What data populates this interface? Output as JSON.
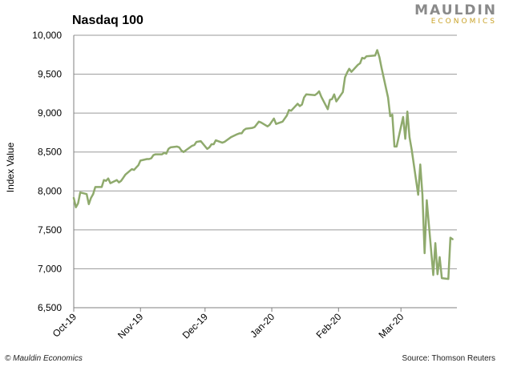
{
  "logo": {
    "name": "MAULDIN",
    "tagline": "ECONOMICS"
  },
  "footer": {
    "copyright": "© Mauldin Economics",
    "source": "Source: Thomson Reuters"
  },
  "colors": {
    "line": "#8faa6d",
    "grid": "#9a9a9a",
    "axis": "#7f7f7f"
  },
  "chart_data": {
    "type": "line",
    "title": "Nasdaq 100",
    "xlabel": "",
    "ylabel": "Index Value",
    "ylim": [
      6500,
      10000
    ],
    "yticks": [
      6500,
      7000,
      7500,
      8000,
      8500,
      9000,
      9500,
      10000
    ],
    "ytick_labels": [
      "6,500",
      "7,000",
      "7,500",
      "8,000",
      "8,500",
      "9,000",
      "9,500",
      "10,000"
    ],
    "xlim": [
      "2019-10-01",
      "2020-03-27"
    ],
    "xticks": [
      "2019-10-01",
      "2019-11-01",
      "2019-12-01",
      "2020-01-01",
      "2020-02-01",
      "2020-03-01"
    ],
    "xtick_labels": [
      "Oct-19",
      "Nov-19",
      "Dec-19",
      "Jan-20",
      "Feb-20",
      "Mar-20"
    ],
    "grid": true,
    "series": [
      {
        "x": [
          "2019-10-01",
          "2019-10-02",
          "2019-10-03",
          "2019-10-04",
          "2019-10-07",
          "2019-10-08",
          "2019-10-09",
          "2019-10-10",
          "2019-10-11",
          "2019-10-14",
          "2019-10-15",
          "2019-10-16",
          "2019-10-17",
          "2019-10-18",
          "2019-10-21",
          "2019-10-22",
          "2019-10-23",
          "2019-10-24",
          "2019-10-25",
          "2019-10-28",
          "2019-10-29",
          "2019-10-30",
          "2019-10-31",
          "2019-11-01",
          "2019-11-04",
          "2019-11-05",
          "2019-11-06",
          "2019-11-07",
          "2019-11-08",
          "2019-11-11",
          "2019-11-12",
          "2019-11-13",
          "2019-11-14",
          "2019-11-15",
          "2019-11-18",
          "2019-11-19",
          "2019-11-20",
          "2019-11-21",
          "2019-11-22",
          "2019-11-25",
          "2019-11-26",
          "2019-11-27",
          "2019-11-29",
          "2019-12-02",
          "2019-12-03",
          "2019-12-04",
          "2019-12-05",
          "2019-12-06",
          "2019-12-09",
          "2019-12-10",
          "2019-12-11",
          "2019-12-12",
          "2019-12-13",
          "2019-12-16",
          "2019-12-17",
          "2019-12-18",
          "2019-12-19",
          "2019-12-20",
          "2019-12-23",
          "2019-12-24",
          "2019-12-26",
          "2019-12-27",
          "2019-12-30",
          "2019-12-31",
          "2020-01-02",
          "2020-01-03",
          "2020-01-06",
          "2020-01-07",
          "2020-01-08",
          "2020-01-09",
          "2020-01-10",
          "2020-01-13",
          "2020-01-14",
          "2020-01-15",
          "2020-01-16",
          "2020-01-17",
          "2020-01-21",
          "2020-01-22",
          "2020-01-23",
          "2020-01-24",
          "2020-01-27",
          "2020-01-28",
          "2020-01-29",
          "2020-01-30",
          "2020-01-31",
          "2020-02-03",
          "2020-02-04",
          "2020-02-05",
          "2020-02-06",
          "2020-02-07",
          "2020-02-10",
          "2020-02-11",
          "2020-02-12",
          "2020-02-13",
          "2020-02-14",
          "2020-02-18",
          "2020-02-19",
          "2020-02-20",
          "2020-02-21",
          "2020-02-24",
          "2020-02-25",
          "2020-02-26",
          "2020-02-27",
          "2020-02-28",
          "2020-03-02",
          "2020-03-03",
          "2020-03-04",
          "2020-03-05",
          "2020-03-06",
          "2020-03-09",
          "2020-03-10",
          "2020-03-11",
          "2020-03-12",
          "2020-03-13",
          "2020-03-16",
          "2020-03-17",
          "2020-03-18",
          "2020-03-19",
          "2020-03-20",
          "2020-03-23",
          "2020-03-24",
          "2020-03-25"
        ],
        "values": [
          7910,
          7790,
          7840,
          7980,
          7960,
          7830,
          7910,
          7960,
          8050,
          8050,
          8140,
          8130,
          8160,
          8100,
          8140,
          8110,
          8130,
          8170,
          8210,
          8280,
          8270,
          8300,
          8330,
          8390,
          8410,
          8410,
          8420,
          8460,
          8470,
          8470,
          8490,
          8480,
          8540,
          8560,
          8570,
          8560,
          8520,
          8500,
          8520,
          8580,
          8590,
          8630,
          8640,
          8540,
          8560,
          8600,
          8600,
          8650,
          8620,
          8630,
          8650,
          8670,
          8690,
          8730,
          8740,
          8740,
          8780,
          8800,
          8810,
          8820,
          8890,
          8880,
          8830,
          8850,
          8930,
          8860,
          8890,
          8930,
          8970,
          9040,
          9030,
          9120,
          9090,
          9110,
          9200,
          9240,
          9230,
          9250,
          9280,
          9210,
          9050,
          9170,
          9180,
          9240,
          9150,
          9270,
          9460,
          9520,
          9570,
          9530,
          9620,
          9640,
          9710,
          9700,
          9730,
          9740,
          9810,
          9720,
          9580,
          9200,
          8960,
          8980,
          8570,
          8570,
          8950,
          8670,
          9020,
          8690,
          8530,
          7950,
          8340,
          7950,
          7200,
          7880,
          6920,
          7330,
          6930,
          7150,
          6880,
          6870,
          7400,
          7380
        ]
      }
    ]
  }
}
